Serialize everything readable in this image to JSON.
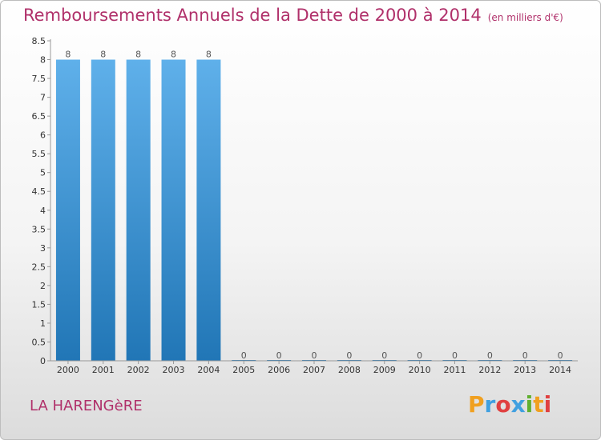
{
  "title": "Remboursements Annuels de la Dette de 2000 à 2014",
  "subtitle": "(en milliers d'€)",
  "commune": "LA HARENGèRE",
  "logo": {
    "letters": [
      "P",
      "r",
      "o",
      "x",
      "i",
      "t",
      "i"
    ],
    "colors": [
      "#f0a020",
      "#40a0e0",
      "#e04040",
      "#40a0e0",
      "#60b030",
      "#f0a020",
      "#e04040"
    ]
  },
  "colors": {
    "bar_top": "#5fb0ea",
    "bar_bottom": "#2176b6",
    "title": "#b0306a"
  },
  "chart_data": {
    "type": "bar",
    "categories": [
      "2000",
      "2001",
      "2002",
      "2003",
      "2004",
      "2005",
      "2006",
      "2007",
      "2008",
      "2009",
      "2010",
      "2011",
      "2012",
      "2013",
      "2014"
    ],
    "values": [
      8,
      8,
      8,
      8,
      8,
      0,
      0,
      0,
      0,
      0,
      0,
      0,
      0,
      0,
      0
    ],
    "data_labels": [
      "8",
      "8",
      "8",
      "8",
      "8",
      "0",
      "0",
      "0",
      "0",
      "0",
      "0",
      "0",
      "0",
      "0",
      "0"
    ],
    "y_ticks": [
      0,
      0.5,
      1,
      1.5,
      2,
      2.5,
      3,
      3.5,
      4,
      4.5,
      5,
      5.5,
      6,
      6.5,
      7,
      7.5,
      8,
      8.5
    ],
    "y_tick_labels": [
      "0",
      "0.5",
      "1",
      "1.5",
      "2",
      "2.5",
      "3",
      "3.5",
      "4",
      "4.5",
      "5",
      "5.5",
      "6",
      "6.5",
      "7",
      "7.5",
      "8",
      "8.5"
    ],
    "ylim": [
      0,
      8.5
    ],
    "xlabel": "",
    "ylabel": "",
    "grid": false
  }
}
